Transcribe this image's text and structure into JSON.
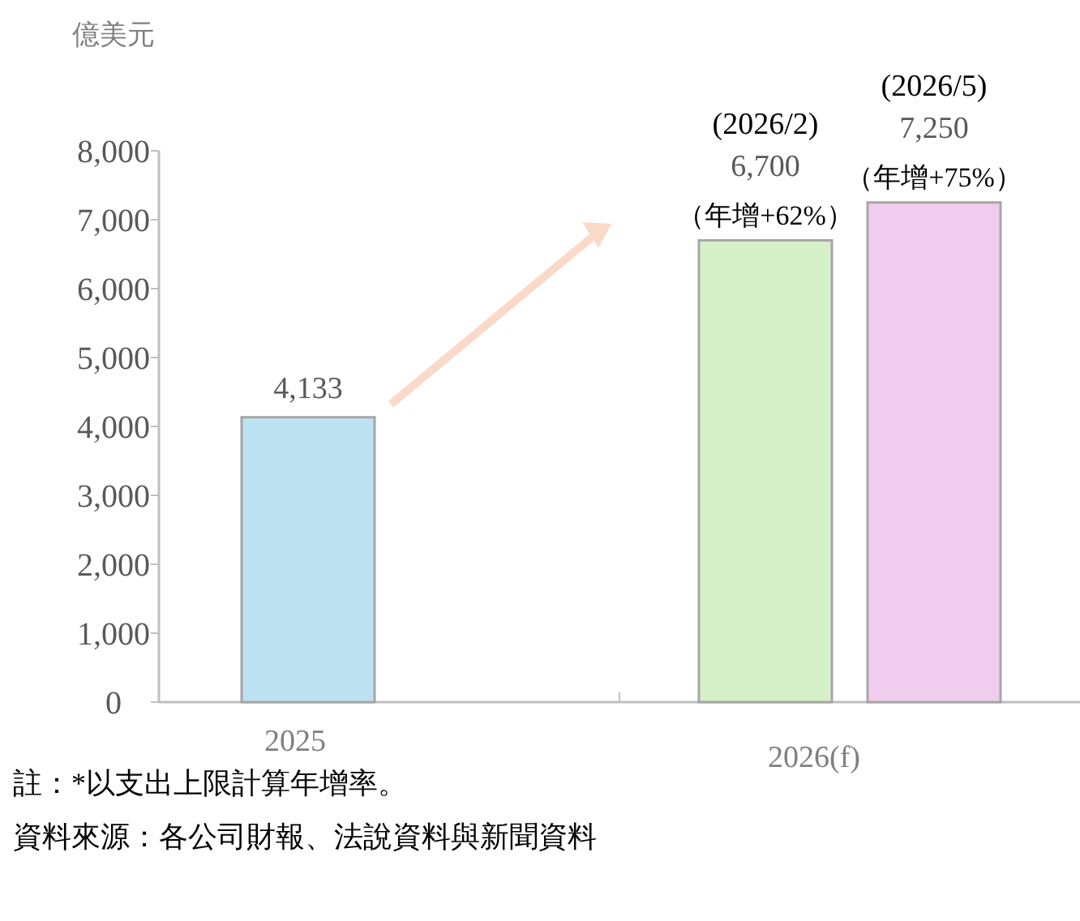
{
  "chart_data": {
    "type": "bar",
    "ylabel": "億美元",
    "categories": [
      "2025",
      "2026(f)"
    ],
    "series": [
      {
        "color": "#bde3f3",
        "values": [
          4133,
          null
        ],
        "value_labels": [
          "4,133",
          null
        ]
      },
      {
        "color": "#d6f0c8",
        "values": [
          null,
          6700
        ],
        "value_labels": [
          null,
          "6,700"
        ]
      },
      {
        "color": "#f0cdee",
        "values": [
          null,
          7250
        ],
        "value_labels": [
          null,
          "7,250"
        ]
      }
    ],
    "ylim": [
      0,
      8000
    ],
    "yticks": [
      {
        "value": 0,
        "label": "0"
      },
      {
        "value": 1000,
        "label": "1,000"
      },
      {
        "value": 2000,
        "label": "2,000"
      },
      {
        "value": 3000,
        "label": "3,000"
      },
      {
        "value": 4000,
        "label": "4,000"
      },
      {
        "value": 5000,
        "label": "5,000"
      },
      {
        "value": 6000,
        "label": "6,000"
      },
      {
        "value": 7000,
        "label": "7,000"
      },
      {
        "value": 8000,
        "label": "8,000"
      }
    ],
    "grid": false,
    "annotations": [
      "(2026/2)",
      "（年增+62%）",
      "(2026/5)",
      "（年增+75%）",
      "註：*以支出上限計算年增率。",
      "資料來源：各公司財報、法說資料與新聞資料"
    ]
  }
}
